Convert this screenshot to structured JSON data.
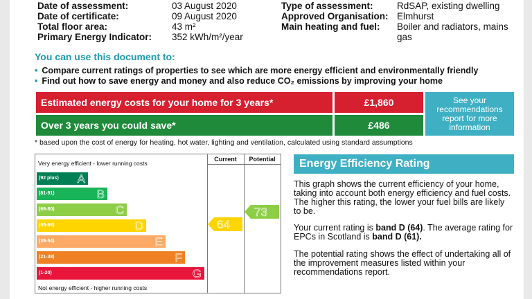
{
  "meta_left": [
    {
      "label": "Date of assessment:",
      "value": "03 August 2020"
    },
    {
      "label": "Date of certificate:",
      "value": "09 August 2020"
    },
    {
      "label": "Total floor area:",
      "value": "43 m²"
    },
    {
      "label": "Primary Energy Indicator:",
      "value": "352 kWh/m²/year"
    }
  ],
  "meta_right": [
    {
      "label": "Type of assessment:",
      "value": "RdSAP, existing dwelling"
    },
    {
      "label": "Approved Organisation:",
      "value": "Elmhurst"
    },
    {
      "label": "Main heating and fuel:",
      "value": "Boiler and radiators, mains gas"
    }
  ],
  "usage": {
    "heading": "You can use this document to:",
    "bullets": [
      "Compare current ratings of properties to see which are more energy efficient and environmentally friendly",
      "Find out how to save energy and money and also reduce CO₂ emissions by improving your home"
    ]
  },
  "costs": {
    "estimated_label": "Estimated energy costs for your home for 3 years*",
    "estimated_value": "£1,860",
    "save_label": "Over 3 years you could save*",
    "save_value": "£486",
    "recommend_link": "See your recommendations report for more information",
    "footnote": "* based upon the cost of energy for heating, hot water, lighting and ventilation, calculated using standard assumptions",
    "colors": {
      "red": "#d6202f",
      "green": "#1e8a3a",
      "teal": "#3fb0c4"
    }
  },
  "chart": {
    "top_label": "Very energy efficient - lower running costs",
    "bottom_label": "Not energy efficient - higher running costs",
    "col_current": "Current",
    "col_potential": "Potential",
    "bands": [
      {
        "range": "(92 plus)",
        "letter": "A",
        "color": "#008054"
      },
      {
        "range": "(81-91)",
        "letter": "B",
        "color": "#19b459"
      },
      {
        "range": "(69-80)",
        "letter": "C",
        "color": "#8dce46"
      },
      {
        "range": "(55-68)",
        "letter": "D",
        "color": "#ffd500"
      },
      {
        "range": "(39-54)",
        "letter": "E",
        "color": "#fcaa65"
      },
      {
        "range": "(21-38)",
        "letter": "F",
        "color": "#ef8023"
      },
      {
        "range": "(1-20)",
        "letter": "G",
        "color": "#e9153b"
      }
    ],
    "current": {
      "value": "64",
      "band": "D",
      "color": "#ffd500"
    },
    "potential": {
      "value": "73",
      "band": "C",
      "color": "#8dce46"
    }
  },
  "rating": {
    "title": "Energy Efficiency Rating",
    "p1": "This graph shows the current efficiency of your home, taking into account both energy efficiency and fuel costs. The higher this rating, the lower your fuel bills are likely to be.",
    "p2_a": "Your current rating is ",
    "p2_b": "band D (64)",
    "p2_c": ". The average rating for EPCs in Scotland is ",
    "p2_d": "band D (61).",
    "p3": "The potential rating shows the effect of undertaking all of the improvement measures listed within your recommendations report."
  }
}
